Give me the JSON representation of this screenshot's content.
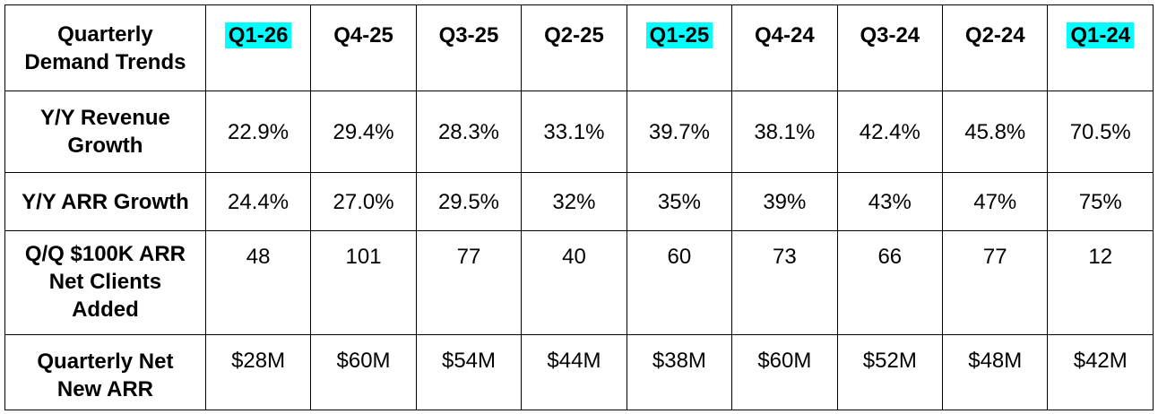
{
  "table": {
    "corner_label": [
      "Quarterly",
      "Demand Trends"
    ],
    "highlight_color": "#00ffff",
    "columns": [
      {
        "label": "Q1-26",
        "highlighted": true
      },
      {
        "label": "Q4-25",
        "highlighted": false
      },
      {
        "label": "Q3-25",
        "highlighted": false
      },
      {
        "label": "Q2-25",
        "highlighted": false
      },
      {
        "label": "Q1-25",
        "highlighted": true
      },
      {
        "label": "Q4-24",
        "highlighted": false
      },
      {
        "label": "Q3-24",
        "highlighted": false
      },
      {
        "label": "Q2-24",
        "highlighted": false
      },
      {
        "label": "Q1-24",
        "highlighted": true
      }
    ],
    "rows": [
      {
        "label": [
          "Y/Y Revenue",
          "Growth"
        ],
        "values": [
          "22.9%",
          "29.4%",
          "28.3%",
          "33.1%",
          "39.7%",
          "38.1%",
          "42.4%",
          "45.8%",
          "70.5%"
        ]
      },
      {
        "label": [
          "Y/Y ARR Growth"
        ],
        "values": [
          "24.4%",
          "27.0%",
          "29.5%",
          "32%",
          "35%",
          "39%",
          "43%",
          "47%",
          "75%"
        ]
      },
      {
        "label": [
          "Q/Q $100K ARR",
          "Net Clients",
          "Added"
        ],
        "values": [
          "48",
          "101",
          "77",
          "40",
          "60",
          "73",
          "66",
          "77",
          "12"
        ]
      },
      {
        "label": [
          "Quarterly Net",
          "New ARR"
        ],
        "values": [
          "$28M",
          "$60M",
          "$54M",
          "$44M",
          "$38M",
          "$60M",
          "$52M",
          "$48M",
          "$42M"
        ]
      }
    ]
  }
}
